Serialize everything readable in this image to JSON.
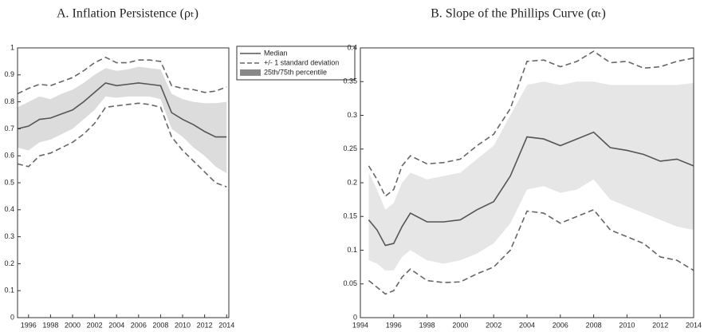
{
  "chart_data": [
    {
      "type": "line",
      "title": "A. Inflation Persistence (ρₜ)",
      "x": [
        1995,
        1996,
        1997,
        1998,
        1999,
        2000,
        2001,
        2002,
        2003,
        2004,
        2005,
        2006,
        2007,
        2008,
        2009,
        2010,
        2011,
        2012,
        2013,
        2014
      ],
      "xlim": [
        1995,
        2014.2
      ],
      "xticks": [
        1996,
        1998,
        2000,
        2002,
        2004,
        2006,
        2008,
        2010,
        2012,
        2014
      ],
      "ylim": [
        0,
        1
      ],
      "yticks": [
        0,
        0.1,
        0.2,
        0.3,
        0.4,
        0.5,
        0.6,
        0.7,
        0.8,
        0.9,
        1
      ],
      "legend": "outside right",
      "series": [
        {
          "name": "Median",
          "color": "#555555",
          "style": "solid",
          "values": [
            0.7,
            0.71,
            0.735,
            0.74,
            0.755,
            0.77,
            0.8,
            0.835,
            0.87,
            0.86,
            0.865,
            0.87,
            0.865,
            0.86,
            0.76,
            0.735,
            0.715,
            0.69,
            0.67,
            0.67
          ]
        },
        {
          "name": "+/- 1 standard deviation",
          "color": "#666666",
          "style": "dashed",
          "high": [
            0.83,
            0.85,
            0.865,
            0.86,
            0.875,
            0.89,
            0.915,
            0.945,
            0.965,
            0.945,
            0.945,
            0.955,
            0.955,
            0.95,
            0.86,
            0.85,
            0.845,
            0.835,
            0.84,
            0.855
          ],
          "low": [
            0.57,
            0.56,
            0.6,
            0.61,
            0.63,
            0.65,
            0.68,
            0.72,
            0.78,
            0.785,
            0.79,
            0.795,
            0.79,
            0.78,
            0.67,
            0.62,
            0.58,
            0.54,
            0.5,
            0.485
          ]
        },
        {
          "name": "25th/75th percentile",
          "color": "#dcdcdc",
          "style": "band",
          "high": [
            0.78,
            0.8,
            0.82,
            0.81,
            0.83,
            0.845,
            0.87,
            0.9,
            0.925,
            0.915,
            0.92,
            0.93,
            0.925,
            0.92,
            0.83,
            0.81,
            0.8,
            0.795,
            0.795,
            0.8
          ],
          "low": [
            0.63,
            0.62,
            0.65,
            0.66,
            0.68,
            0.7,
            0.735,
            0.77,
            0.82,
            0.815,
            0.82,
            0.82,
            0.82,
            0.81,
            0.7,
            0.67,
            0.63,
            0.6,
            0.56,
            0.535
          ]
        }
      ]
    },
    {
      "type": "line",
      "title": "B. Slope of the Phillips Curve (αₜ)",
      "x": [
        1994.5,
        1995,
        1995.5,
        1996,
        1996.5,
        1997,
        1998,
        1999,
        2000,
        2001,
        2002,
        2003,
        2004,
        2005,
        2006,
        2007,
        2008,
        2009,
        2010,
        2011,
        2012,
        2013,
        2014
      ],
      "xlim": [
        1994,
        2014
      ],
      "xticks": [
        1994,
        1996,
        1998,
        2000,
        2002,
        2004,
        2006,
        2008,
        2010,
        2012,
        2014
      ],
      "ylim": [
        0,
        0.4
      ],
      "yticks": [
        0,
        0.05,
        0.1,
        0.15,
        0.2,
        0.25,
        0.3,
        0.35,
        0.4
      ],
      "series": [
        {
          "color": "#555555",
          "style": "solid",
          "values": [
            0.145,
            0.13,
            0.107,
            0.11,
            0.135,
            0.155,
            0.142,
            0.142,
            0.145,
            0.16,
            0.172,
            0.21,
            0.268,
            0.265,
            0.255,
            0.265,
            0.275,
            0.252,
            0.248,
            0.242,
            0.232,
            0.235,
            0.225
          ]
        },
        {
          "color": "#666666",
          "style": "dashed",
          "high": [
            0.225,
            0.205,
            0.18,
            0.19,
            0.225,
            0.24,
            0.228,
            0.23,
            0.235,
            0.255,
            0.272,
            0.31,
            0.38,
            0.382,
            0.372,
            0.38,
            0.395,
            0.378,
            0.38,
            0.37,
            0.372,
            0.38,
            0.385
          ],
          "low": [
            0.055,
            0.045,
            0.035,
            0.04,
            0.06,
            0.072,
            0.055,
            0.052,
            0.053,
            0.065,
            0.075,
            0.1,
            0.158,
            0.155,
            0.14,
            0.15,
            0.16,
            0.13,
            0.12,
            0.11,
            0.09,
            0.085,
            0.07
          ]
        },
        {
          "color": "#e6e6e6",
          "style": "band",
          "high": [
            0.215,
            0.19,
            0.16,
            0.17,
            0.2,
            0.215,
            0.205,
            0.21,
            0.215,
            0.235,
            0.255,
            0.3,
            0.345,
            0.35,
            0.345,
            0.35,
            0.35,
            0.345,
            0.345,
            0.345,
            0.345,
            0.345,
            0.348
          ],
          "low": [
            0.085,
            0.08,
            0.07,
            0.07,
            0.09,
            0.1,
            0.085,
            0.08,
            0.085,
            0.095,
            0.11,
            0.14,
            0.19,
            0.195,
            0.185,
            0.19,
            0.205,
            0.175,
            0.165,
            0.155,
            0.145,
            0.135,
            0.13
          ]
        }
      ]
    }
  ]
}
